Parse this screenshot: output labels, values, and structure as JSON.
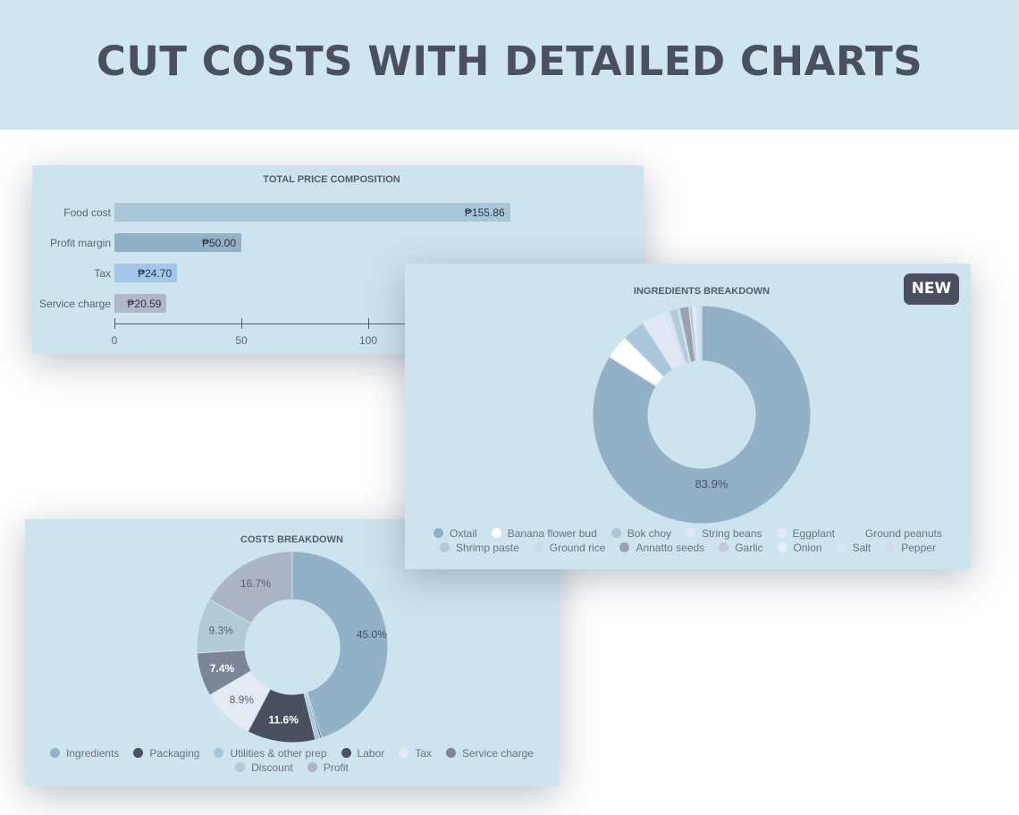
{
  "header": {
    "title": "CUT COSTS WITH DETAILED CHARTS"
  },
  "badge": {
    "label": "NEW"
  },
  "chart_data": [
    {
      "type": "bar",
      "orientation": "horizontal",
      "title": "TOTAL PRICE COMPOSITION",
      "categories": [
        "Food cost",
        "Profit margin",
        "Tax",
        "Service charge"
      ],
      "values": [
        155.86,
        50.0,
        24.7,
        20.59
      ],
      "value_labels": [
        "₱155.86",
        "₱50.00",
        "₱24.70",
        "₱20.59"
      ],
      "colors": [
        "#a9c6d8",
        "#92b1c6",
        "#a2c6ea",
        "#b1b6c8"
      ],
      "xticks": [
        "0",
        "50",
        "100"
      ],
      "xlim": [
        0,
        150
      ]
    },
    {
      "type": "pie",
      "donut": true,
      "title": "INGREDIENTS BREAKDOWN",
      "legend_position": "bottom",
      "slices": [
        {
          "label": "Oxtail",
          "value": 83.9,
          "color": "#92b1c6",
          "data_label": "83.9%"
        },
        {
          "label": "Banana flower bud",
          "value": 3.6,
          "color": "#ffffff"
        },
        {
          "label": "Bok choy",
          "value": 3.4,
          "color": "#a9c7da"
        },
        {
          "label": "String beans",
          "value": 3.6,
          "color": "#e2e8f3"
        },
        {
          "label": "Eggplant",
          "value": 0.4,
          "color": "#e6e8f2"
        },
        {
          "label": "Ground peanuts",
          "value": 0.3,
          "color": "#cde4ee"
        },
        {
          "label": "Shrimp paste",
          "value": 1.2,
          "color": "#b3cad8"
        },
        {
          "label": "Ground rice",
          "value": 0.3,
          "color": "#c6dde8"
        },
        {
          "label": "Annatto seeds",
          "value": 1.4,
          "color": "#9aa1b0"
        },
        {
          "label": "Garlic",
          "value": 0.5,
          "color": "#c3c7d6"
        },
        {
          "label": "Onion",
          "value": 0.5,
          "color": "#e8eef6"
        },
        {
          "label": "Salt",
          "value": 0.3,
          "color": "#d7e9f0"
        },
        {
          "label": "Pepper",
          "value": 0.6,
          "color": "#d0dde6"
        }
      ]
    },
    {
      "type": "pie",
      "donut": true,
      "title": "COSTS BREAKDOWN",
      "legend_position": "bottom",
      "slices": [
        {
          "label": "Ingredients",
          "value": 45.0,
          "color": "#92b1c6",
          "data_label": "45.0%",
          "label_color": "#4b505e"
        },
        {
          "label": "Packaging",
          "value": 0.3,
          "color": "#4a5060"
        },
        {
          "label": "Utilities & other prep",
          "value": 0.8,
          "color": "#a9c7da"
        },
        {
          "label": "Labor",
          "value": 11.6,
          "color": "#4a5060",
          "data_label": "11.6%",
          "label_color": "#ffffff"
        },
        {
          "label": "Tax",
          "value": 8.9,
          "color": "#e6eaf3",
          "data_label": "8.9%",
          "label_color": "#5b6270"
        },
        {
          "label": "Service charge",
          "value": 7.4,
          "color": "#7b8597",
          "data_label": "7.4%",
          "label_color": "#ffffff"
        },
        {
          "label": "Discount",
          "value": 9.3,
          "color": "#b0cad8",
          "data_label": "9.3%",
          "label_color": "#5b6270"
        },
        {
          "label": "Profit",
          "value": 16.7,
          "color": "#adb3c6",
          "data_label": "16.7%",
          "label_color": "#5b6270"
        }
      ]
    }
  ]
}
